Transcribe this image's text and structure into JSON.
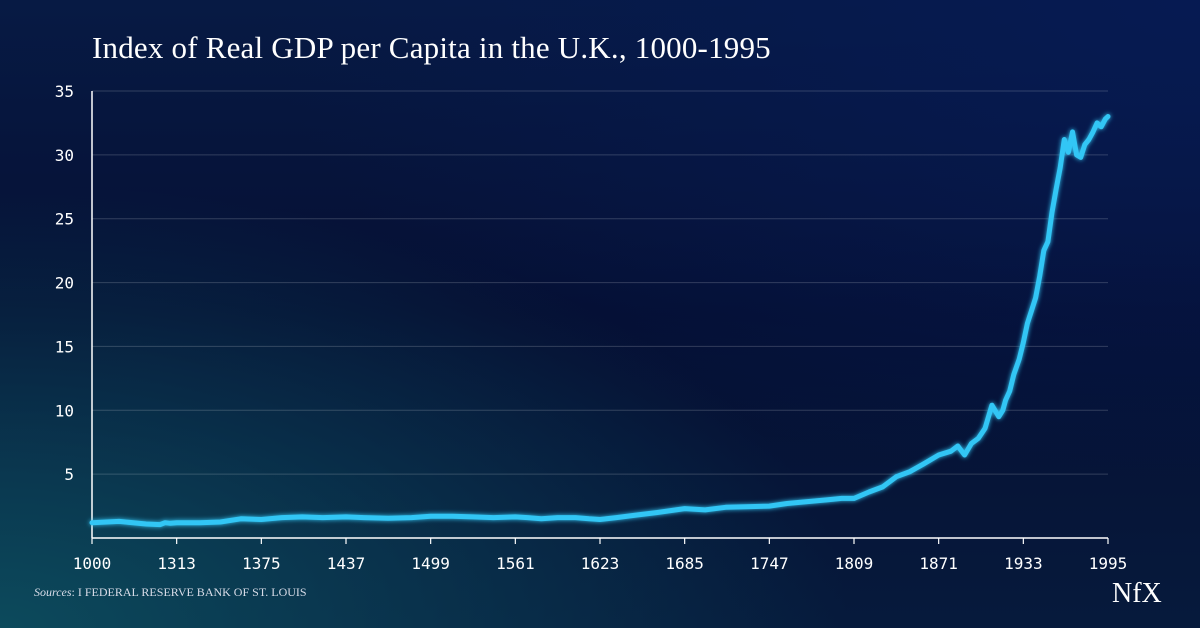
{
  "chart_data": {
    "type": "line",
    "title": "Index of Real GDP per Capita in the U.K., 1000-1995",
    "xlabel": "",
    "ylabel": "",
    "x_ticks": [
      "1000",
      "1313",
      "1375",
      "1437",
      "1499",
      "1561",
      "1623",
      "1685",
      "1747",
      "1809",
      "1871",
      "1933",
      "1995"
    ],
    "y_ticks": [
      5,
      10,
      15,
      20,
      25,
      30,
      35
    ],
    "ylim": [
      0,
      35
    ],
    "grid": true,
    "line_color": "#33c6f5",
    "series": [
      {
        "x": [
          1000,
          1100,
          1200,
          1252,
          1270,
          1290,
          1313,
          1330,
          1345,
          1360,
          1375,
          1390,
          1405,
          1420,
          1437,
          1450,
          1468,
          1485,
          1499,
          1515,
          1530,
          1545,
          1561,
          1570,
          1580,
          1592,
          1605,
          1615,
          1623,
          1635,
          1650,
          1665,
          1685,
          1700,
          1715,
          1730,
          1747,
          1760,
          1770,
          1780,
          1790,
          1800,
          1809,
          1820,
          1830,
          1840,
          1850,
          1860,
          1871,
          1880,
          1885,
          1890,
          1895,
          1900,
          1905,
          1910,
          1915,
          1918,
          1920,
          1923,
          1926,
          1930,
          1933,
          1936,
          1939,
          1942,
          1945,
          1948,
          1951,
          1954,
          1957,
          1960,
          1963,
          1966,
          1969,
          1972,
          1975,
          1978,
          1981,
          1984,
          1987,
          1990,
          1993,
          1995
        ],
        "y": [
          1.2,
          1.3,
          1.1,
          1.05,
          1.2,
          1.15,
          1.2,
          1.2,
          1.25,
          1.5,
          1.45,
          1.6,
          1.65,
          1.6,
          1.65,
          1.6,
          1.55,
          1.6,
          1.7,
          1.7,
          1.65,
          1.6,
          1.65,
          1.6,
          1.5,
          1.6,
          1.6,
          1.5,
          1.45,
          1.6,
          1.8,
          2.0,
          2.3,
          2.2,
          2.4,
          2.45,
          2.5,
          2.7,
          2.8,
          2.9,
          3.0,
          3.1,
          3.1,
          3.6,
          4.0,
          4.8,
          5.2,
          5.8,
          6.5,
          6.8,
          7.2,
          6.5,
          7.4,
          7.8,
          8.6,
          10.4,
          9.5,
          10.0,
          10.8,
          11.5,
          12.8,
          14.0,
          15.3,
          16.8,
          17.8,
          18.8,
          20.5,
          22.5,
          23.2,
          25.5,
          27.3,
          29.0,
          31.2,
          30.2,
          31.8,
          30.0,
          29.8,
          30.8,
          31.2,
          31.8,
          32.5,
          32.2,
          32.8,
          33.0
        ]
      }
    ]
  },
  "source": {
    "label": "Sources",
    "text": ": I FEDERAL RESERVE BANK OF ST. LOUIS"
  },
  "logo": {
    "text": "NfX"
  }
}
